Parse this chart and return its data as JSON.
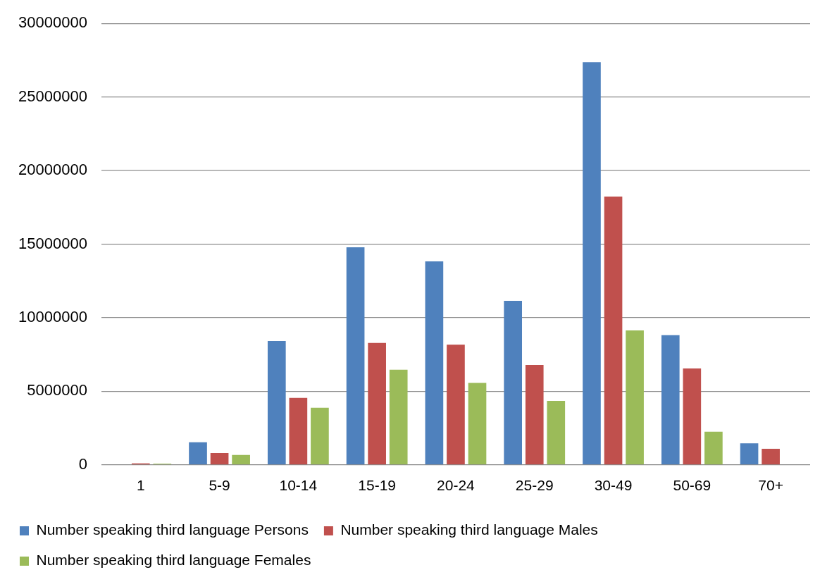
{
  "chart_data": {
    "type": "bar",
    "categories": [
      "1",
      "5-9",
      "10-14",
      "15-19",
      "20-24",
      "25-29",
      "30-49",
      "50-69",
      "70+"
    ],
    "series": [
      {
        "name": "Number speaking third language Persons",
        "color": "#4f81bd",
        "values": [
          0,
          1530000,
          8420000,
          14780000,
          13830000,
          11150000,
          27370000,
          8810000,
          1460000
        ]
      },
      {
        "name": "Number speaking third language Males",
        "color": "#c0504d",
        "values": [
          100000,
          810000,
          4550000,
          8280000,
          8170000,
          6790000,
          18230000,
          6550000,
          1090000
        ]
      },
      {
        "name": "Number speaking third language Females",
        "color": "#9bbb59",
        "values": [
          80000,
          670000,
          3880000,
          6460000,
          5570000,
          4350000,
          9140000,
          2250000,
          null
        ]
      }
    ],
    "ylim": [
      0,
      30000000
    ],
    "yticks": [
      0,
      5000000,
      10000000,
      15000000,
      20000000,
      25000000,
      30000000
    ],
    "grid": "y",
    "legend": "bottom"
  }
}
